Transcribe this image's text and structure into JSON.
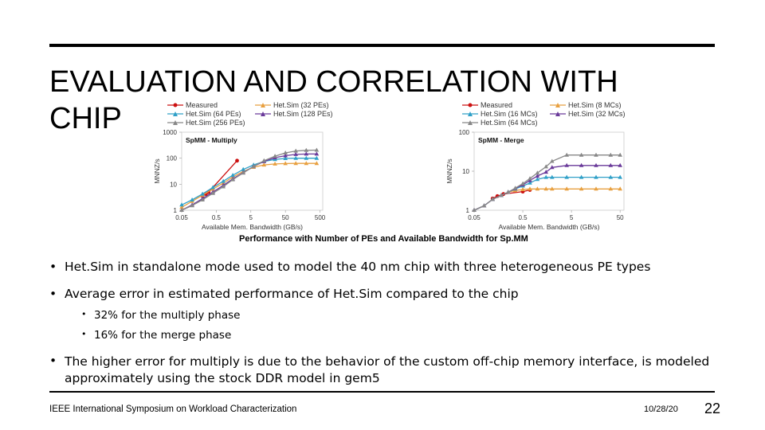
{
  "slide": {
    "title": "EVALUATION AND CORRELATION WITH CHIP",
    "caption": "Performance with Number of PEs and Available Bandwidth for Sp.MM",
    "bullets": [
      "Het.Sim in standalone mode used to model the 40 nm chip with three heterogeneous PE types",
      "Average error in estimated performance of Het.Sim compared to the chip"
    ],
    "sub_bullets": [
      "32% for the multiply phase",
      "16% for the merge phase"
    ],
    "bullet3": "The higher error for multiply is due to the behavior of the custom off-chip memory interface, is modeled approximately using the stock DDR model in gem5",
    "footer": {
      "conference": "IEEE International Symposium on Workload Characterization",
      "date": "10/28/20",
      "page": "22"
    }
  },
  "chart_data": [
    {
      "type": "line",
      "title": "SpMM - Multiply",
      "xlabel": "Available Mem. Bandwidth (GB/s)",
      "ylabel": "MNNZ/s",
      "x_scale": "log",
      "y_scale": "log",
      "xlim": [
        0.05,
        600
      ],
      "ylim": [
        1,
        1000
      ],
      "x_ticks": [
        "0.05",
        "0.5",
        "5",
        "50",
        "500"
      ],
      "y_ticks": [
        "1",
        "10",
        "100",
        "1000"
      ],
      "series": [
        {
          "name": "Measured",
          "color": "#cc1111",
          "marker": "circle",
          "x": [
            0.2,
            0.25,
            0.3,
            2.0
          ],
          "y": [
            3.5,
            4.2,
            5.0,
            80
          ]
        },
        {
          "name": "Het.Sim (32 PEs)",
          "color": "#e8a040",
          "marker": "triangle",
          "x": [
            0.05,
            0.1,
            0.2,
            0.4,
            0.8,
            1.5,
            3,
            6,
            12,
            25,
            50,
            100,
            200,
            400
          ],
          "y": [
            1.3,
            2.2,
            3.8,
            6.5,
            11,
            19,
            31,
            45,
            55,
            60,
            62,
            63,
            63,
            63
          ]
        },
        {
          "name": "Het.Sim (64 PEs)",
          "color": "#30a0c8",
          "marker": "triangle",
          "x": [
            0.05,
            0.1,
            0.2,
            0.4,
            0.8,
            1.5,
            3,
            6,
            12,
            25,
            50,
            100,
            200,
            400
          ],
          "y": [
            1.6,
            2.5,
            4.2,
            7.5,
            13,
            22,
            37,
            55,
            75,
            90,
            98,
            100,
            100,
            100
          ]
        },
        {
          "name": "Het.Sim (128 PEs)",
          "color": "#6a3a9a",
          "marker": "triangle",
          "x": [
            0.05,
            0.1,
            0.2,
            0.4,
            0.8,
            1.5,
            3,
            6,
            12,
            25,
            50,
            100,
            200,
            400
          ],
          "y": [
            1.0,
            1.6,
            2.8,
            5.0,
            9,
            16,
            28,
            48,
            75,
            105,
            125,
            140,
            145,
            145
          ]
        },
        {
          "name": "Het.Sim (256 PEs)",
          "color": "#888888",
          "marker": "triangle",
          "x": [
            0.05,
            0.1,
            0.2,
            0.4,
            0.8,
            1.5,
            3,
            6,
            12,
            25,
            50,
            100,
            200,
            400
          ],
          "y": [
            0.9,
            1.5,
            2.5,
            4.5,
            8,
            15,
            27,
            48,
            80,
            120,
            160,
            190,
            200,
            205
          ]
        }
      ]
    },
    {
      "type": "line",
      "title": "SpMM - Merge",
      "xlabel": "Available Mem. Bandwidth (GB/s)",
      "ylabel": "MNNZ/s",
      "x_scale": "log",
      "y_scale": "log",
      "xlim": [
        0.05,
        60
      ],
      "ylim": [
        1,
        100
      ],
      "x_ticks": [
        "0.05",
        "0.5",
        "5",
        "50"
      ],
      "y_ticks": [
        "1",
        "10",
        "100"
      ],
      "series": [
        {
          "name": "Measured",
          "color": "#cc1111",
          "marker": "circle",
          "x": [
            0.12,
            0.15,
            0.2,
            0.5,
            0.7
          ],
          "y": [
            2.0,
            2.3,
            2.6,
            3.0,
            3.3
          ]
        },
        {
          "name": "Het.Sim (8 MCs)",
          "color": "#e8a040",
          "marker": "triangle",
          "x": [
            0.05,
            0.08,
            0.12,
            0.18,
            0.25,
            0.35,
            0.5,
            0.7,
            1,
            1.5,
            2,
            4,
            8,
            16,
            32,
            50
          ],
          "y": [
            0.9,
            1.3,
            1.9,
            2.4,
            2.9,
            3.2,
            3.4,
            3.5,
            3.5,
            3.5,
            3.5,
            3.5,
            3.5,
            3.5,
            3.5,
            3.5
          ]
        },
        {
          "name": "Het.Sim (16 MCs)",
          "color": "#30a0c8",
          "marker": "triangle",
          "x": [
            0.05,
            0.08,
            0.12,
            0.18,
            0.25,
            0.35,
            0.5,
            0.7,
            1,
            1.5,
            2,
            4,
            8,
            16,
            32,
            50
          ],
          "y": [
            0.9,
            1.3,
            1.9,
            2.4,
            2.9,
            3.5,
            4.2,
            5.0,
            6.2,
            7.0,
            7.0,
            7.0,
            7.0,
            7.0,
            7.0,
            7.0
          ]
        },
        {
          "name": "Het.Sim (32 MCs)",
          "color": "#6a3a9a",
          "marker": "triangle",
          "x": [
            0.05,
            0.08,
            0.12,
            0.18,
            0.25,
            0.35,
            0.5,
            0.7,
            1,
            1.5,
            2,
            4,
            8,
            16,
            32,
            50
          ],
          "y": [
            0.9,
            1.3,
            1.9,
            2.4,
            2.9,
            3.6,
            4.5,
            5.8,
            7.5,
            9.5,
            12.5,
            14,
            14,
            14,
            14,
            14
          ]
        },
        {
          "name": "Het.Sim (64 MCs)",
          "color": "#888888",
          "marker": "triangle",
          "x": [
            0.05,
            0.08,
            0.12,
            0.18,
            0.25,
            0.35,
            0.5,
            0.7,
            1,
            1.5,
            2,
            4,
            8,
            16,
            32,
            50
          ],
          "y": [
            0.9,
            1.3,
            1.9,
            2.4,
            2.9,
            3.7,
            4.8,
            6.5,
            9,
            13,
            18,
            26,
            26,
            26,
            26,
            26
          ]
        }
      ]
    }
  ]
}
